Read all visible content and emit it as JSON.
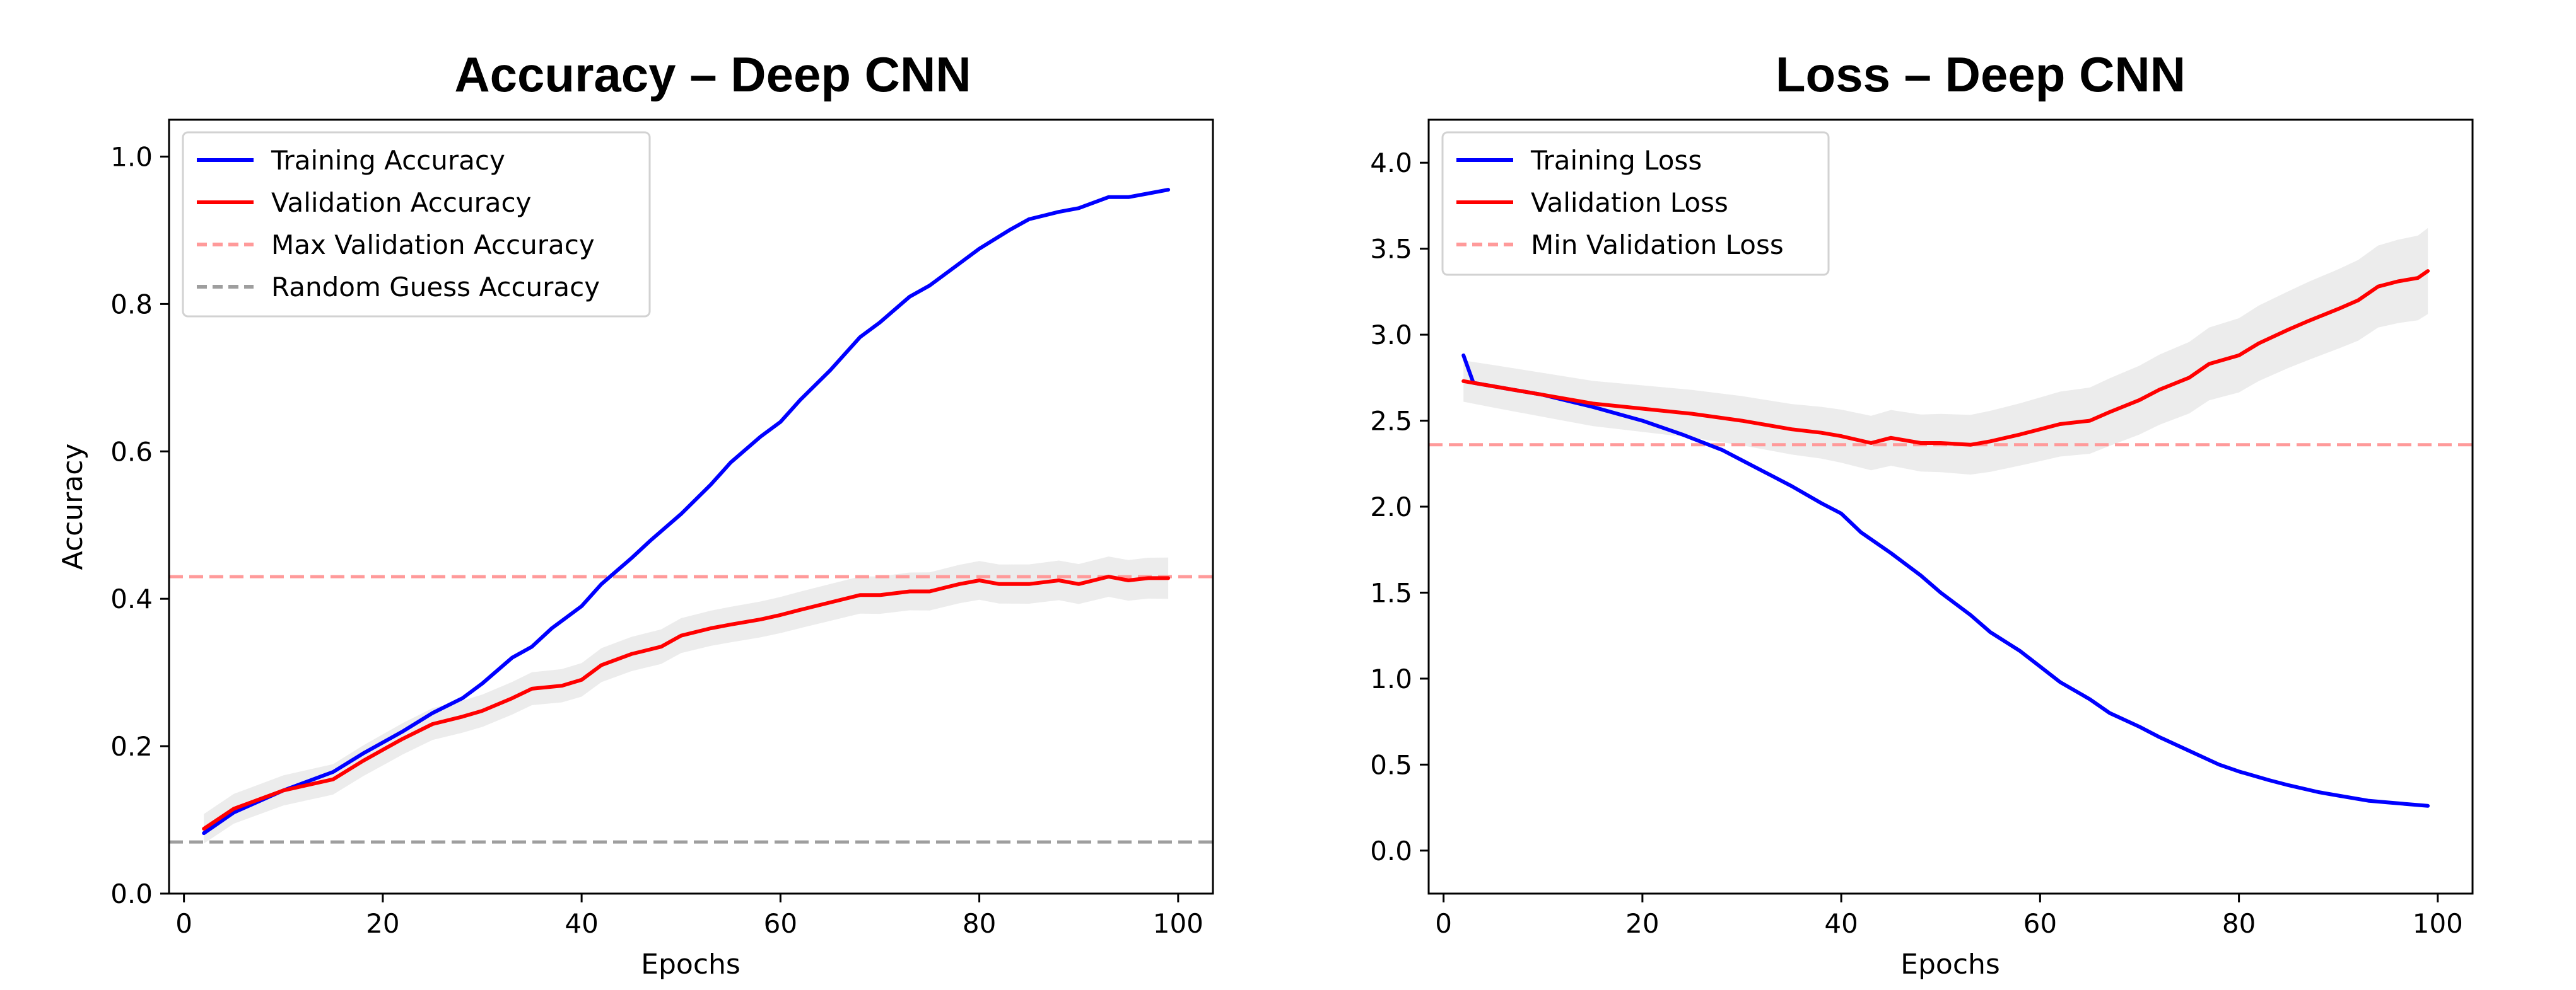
{
  "chart_data": [
    {
      "type": "line",
      "title": "Accuracy – Deep CNN",
      "xlabel": "Epochs",
      "ylabel": "Accuracy",
      "xlim": [
        -1.5,
        103.5
      ],
      "ylim": [
        0.0,
        1.05
      ],
      "xticks": [
        "0",
        "20",
        "40",
        "60",
        "80",
        "100"
      ],
      "yticks": [
        "0.0",
        "0.2",
        "0.4",
        "0.6",
        "0.8",
        "1.0"
      ],
      "xtick_values": [
        0,
        20,
        40,
        60,
        80,
        100
      ],
      "ytick_values": [
        0.0,
        0.2,
        0.4,
        0.6,
        0.8,
        1.0
      ],
      "grid": false,
      "legend_position": "top-left",
      "series": [
        {
          "name": "Training Accuracy",
          "color": "#0000ff",
          "style": "solid",
          "points": [
            [
              2,
              0.082
            ],
            [
              5,
              0.11
            ],
            [
              10,
              0.14
            ],
            [
              15,
              0.165
            ],
            [
              18,
              0.19
            ],
            [
              20,
              0.205
            ],
            [
              22,
              0.22
            ],
            [
              25,
              0.245
            ],
            [
              28,
              0.265
            ],
            [
              30,
              0.285
            ],
            [
              33,
              0.32
            ],
            [
              35,
              0.335
            ],
            [
              37,
              0.36
            ],
            [
              40,
              0.39
            ],
            [
              42,
              0.42
            ],
            [
              45,
              0.455
            ],
            [
              47,
              0.48
            ],
            [
              50,
              0.515
            ],
            [
              53,
              0.555
            ],
            [
              55,
              0.585
            ],
            [
              58,
              0.62
            ],
            [
              60,
              0.64
            ],
            [
              62,
              0.67
            ],
            [
              65,
              0.71
            ],
            [
              68,
              0.755
            ],
            [
              70,
              0.775
            ],
            [
              73,
              0.81
            ],
            [
              75,
              0.825
            ],
            [
              78,
              0.855
            ],
            [
              80,
              0.875
            ],
            [
              83,
              0.9
            ],
            [
              85,
              0.915
            ],
            [
              88,
              0.925
            ],
            [
              90,
              0.93
            ],
            [
              93,
              0.945
            ],
            [
              95,
              0.945
            ],
            [
              97,
              0.95
            ],
            [
              99,
              0.955
            ]
          ]
        },
        {
          "name": "Validation Accuracy",
          "color": "#ff0000",
          "style": "solid",
          "points": [
            [
              2,
              0.088
            ],
            [
              5,
              0.115
            ],
            [
              10,
              0.14
            ],
            [
              15,
              0.155
            ],
            [
              18,
              0.18
            ],
            [
              20,
              0.195
            ],
            [
              22,
              0.21
            ],
            [
              25,
              0.23
            ],
            [
              28,
              0.24
            ],
            [
              30,
              0.248
            ],
            [
              33,
              0.265
            ],
            [
              35,
              0.278
            ],
            [
              38,
              0.282
            ],
            [
              40,
              0.29
            ],
            [
              42,
              0.31
            ],
            [
              45,
              0.325
            ],
            [
              48,
              0.335
            ],
            [
              50,
              0.35
            ],
            [
              53,
              0.36
            ],
            [
              55,
              0.365
            ],
            [
              58,
              0.372
            ],
            [
              60,
              0.378
            ],
            [
              62,
              0.385
            ],
            [
              65,
              0.395
            ],
            [
              68,
              0.405
            ],
            [
              70,
              0.405
            ],
            [
              73,
              0.41
            ],
            [
              75,
              0.41
            ],
            [
              78,
              0.42
            ],
            [
              80,
              0.425
            ],
            [
              82,
              0.42
            ],
            [
              85,
              0.42
            ],
            [
              88,
              0.425
            ],
            [
              90,
              0.42
            ],
            [
              93,
              0.43
            ],
            [
              95,
              0.425
            ],
            [
              97,
              0.428
            ],
            [
              99,
              0.428
            ]
          ],
          "band": [
            0.02,
            0.028
          ]
        },
        {
          "name": "Max Validation Accuracy",
          "color": "#ff9a9a",
          "style": "dashed",
          "y": 0.43
        },
        {
          "name": "Random Guess Accuracy",
          "color": "#9e9e9e",
          "style": "dashed",
          "y": 0.07
        }
      ]
    },
    {
      "type": "line",
      "title": "Loss – Deep CNN",
      "xlabel": "Epochs",
      "ylabel": "",
      "xlim": [
        -1.5,
        103.5
      ],
      "ylim": [
        -0.25,
        4.25
      ],
      "xticks": [
        "0",
        "20",
        "40",
        "60",
        "80",
        "100"
      ],
      "yticks": [
        "0.0",
        "0.5",
        "1.0",
        "1.5",
        "2.0",
        "2.5",
        "3.0",
        "3.5",
        "4.0"
      ],
      "xtick_values": [
        0,
        20,
        40,
        60,
        80,
        100
      ],
      "ytick_values": [
        0.0,
        0.5,
        1.0,
        1.5,
        2.0,
        2.5,
        3.0,
        3.5,
        4.0
      ],
      "grid": false,
      "legend_position": "top-left",
      "series": [
        {
          "name": "Training Loss",
          "color": "#0000ff",
          "style": "solid",
          "points": [
            [
              2,
              2.88
            ],
            [
              3,
              2.72
            ],
            [
              5,
              2.7
            ],
            [
              10,
              2.65
            ],
            [
              15,
              2.58
            ],
            [
              20,
              2.5
            ],
            [
              24,
              2.42
            ],
            [
              28,
              2.33
            ],
            [
              30,
              2.27
            ],
            [
              33,
              2.18
            ],
            [
              35,
              2.12
            ],
            [
              38,
              2.02
            ],
            [
              40,
              1.96
            ],
            [
              42,
              1.85
            ],
            [
              45,
              1.73
            ],
            [
              48,
              1.6
            ],
            [
              50,
              1.5
            ],
            [
              53,
              1.37
            ],
            [
              55,
              1.27
            ],
            [
              58,
              1.16
            ],
            [
              60,
              1.07
            ],
            [
              62,
              0.98
            ],
            [
              65,
              0.88
            ],
            [
              67,
              0.8
            ],
            [
              70,
              0.72
            ],
            [
              72,
              0.66
            ],
            [
              75,
              0.58
            ],
            [
              78,
              0.5
            ],
            [
              80,
              0.46
            ],
            [
              83,
              0.41
            ],
            [
              85,
              0.38
            ],
            [
              88,
              0.34
            ],
            [
              90,
              0.32
            ],
            [
              93,
              0.29
            ],
            [
              95,
              0.28
            ],
            [
              97,
              0.27
            ],
            [
              99,
              0.26
            ]
          ]
        },
        {
          "name": "Validation Loss",
          "color": "#ff0000",
          "style": "solid",
          "points": [
            [
              2,
              2.73
            ],
            [
              5,
              2.7
            ],
            [
              10,
              2.65
            ],
            [
              15,
              2.6
            ],
            [
              20,
              2.57
            ],
            [
              25,
              2.54
            ],
            [
              30,
              2.5
            ],
            [
              35,
              2.45
            ],
            [
              38,
              2.43
            ],
            [
              40,
              2.41
            ],
            [
              43,
              2.37
            ],
            [
              45,
              2.4
            ],
            [
              48,
              2.37
            ],
            [
              50,
              2.37
            ],
            [
              53,
              2.36
            ],
            [
              55,
              2.38
            ],
            [
              58,
              2.42
            ],
            [
              60,
              2.45
            ],
            [
              62,
              2.48
            ],
            [
              65,
              2.5
            ],
            [
              67,
              2.55
            ],
            [
              70,
              2.62
            ],
            [
              72,
              2.68
            ],
            [
              75,
              2.75
            ],
            [
              77,
              2.83
            ],
            [
              80,
              2.88
            ],
            [
              82,
              2.95
            ],
            [
              85,
              3.03
            ],
            [
              87,
              3.08
            ],
            [
              90,
              3.15
            ],
            [
              92,
              3.2
            ],
            [
              94,
              3.28
            ],
            [
              96,
              3.31
            ],
            [
              98,
              3.33
            ],
            [
              99,
              3.37
            ]
          ],
          "band": [
            0.12,
            0.25
          ]
        },
        {
          "name": "Min Validation Loss",
          "color": "#ff9a9a",
          "style": "dashed",
          "y": 2.36
        }
      ]
    }
  ]
}
